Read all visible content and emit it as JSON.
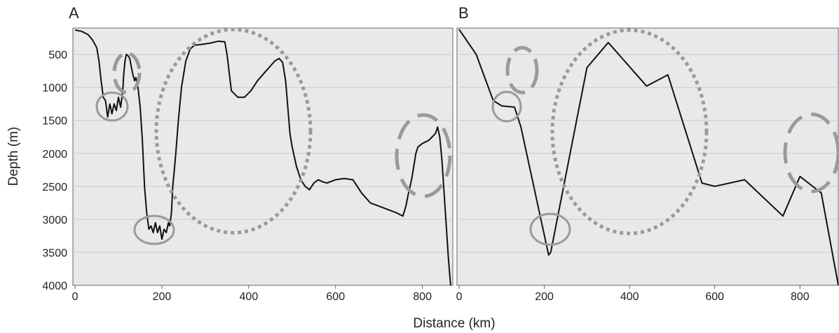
{
  "figure": {
    "ylabel": "Depth (m)",
    "xlabel": "Distance (km)"
  },
  "colors": {
    "plot_background": "#e8e9eb",
    "gridline": "#c9cbce",
    "line": "#111111",
    "annotation": "#9a9a9a",
    "axis": "#666666"
  },
  "chart_data": [
    {
      "type": "line",
      "panel_label": "A",
      "xlim": [
        -5,
        870
      ],
      "ylim": [
        4000,
        100
      ],
      "y_inverted": true,
      "grid": true,
      "xticks": [
        0,
        200,
        400,
        600,
        800
      ],
      "yticks": [
        500,
        1000,
        1500,
        2000,
        2500,
        3000,
        3500,
        4000
      ],
      "series": [
        {
          "x": [
            0,
            15,
            30,
            40,
            50,
            55,
            60,
            65,
            70,
            75,
            80,
            85,
            90,
            95,
            100,
            105,
            110,
            112,
            115,
            118,
            122,
            126,
            130,
            133,
            137,
            140,
            145,
            150,
            155,
            160,
            165,
            170,
            175,
            180,
            185,
            190,
            195,
            200,
            205,
            210,
            215,
            218,
            222,
            225,
            228,
            232,
            238,
            245,
            255,
            265,
            275,
            290,
            310,
            330,
            345,
            350,
            360,
            375,
            390,
            405,
            420,
            440,
            460,
            470,
            478,
            485,
            490,
            495,
            500,
            505,
            510,
            520,
            530,
            540,
            550,
            560,
            570,
            580,
            600,
            620,
            640,
            660,
            680,
            700,
            720,
            740,
            755,
            762,
            768,
            775,
            780,
            785,
            790,
            800,
            815,
            830,
            835,
            840,
            845,
            850,
            855,
            860,
            865
          ],
          "y": [
            130,
            150,
            200,
            280,
            400,
            600,
            900,
            1150,
            1200,
            1450,
            1250,
            1400,
            1250,
            1350,
            1150,
            1300,
            1050,
            800,
            600,
            500,
            520,
            560,
            700,
            800,
            900,
            850,
            1000,
            1300,
            1800,
            2500,
            2900,
            3150,
            3100,
            3200,
            3050,
            3200,
            3100,
            3300,
            3150,
            3200,
            3050,
            3100,
            2900,
            2500,
            2300,
            2000,
            1500,
            1000,
            600,
            420,
            360,
            350,
            330,
            300,
            310,
            500,
            1050,
            1150,
            1150,
            1050,
            900,
            750,
            600,
            560,
            620,
            900,
            1300,
            1700,
            1900,
            2050,
            2200,
            2400,
            2500,
            2550,
            2450,
            2400,
            2430,
            2450,
            2400,
            2380,
            2400,
            2600,
            2750,
            2800,
            2850,
            2900,
            2950,
            2800,
            2600,
            2400,
            2200,
            2000,
            1900,
            1850,
            1800,
            1700,
            1600,
            1750,
            2100,
            2600,
            3100,
            3600,
            4000
          ]
        }
      ]
    },
    {
      "type": "line",
      "panel_label": "B",
      "xlim": [
        -5,
        890
      ],
      "ylim": [
        4000,
        100
      ],
      "y_inverted": true,
      "grid": true,
      "xticks": [
        0,
        200,
        400,
        600,
        800
      ],
      "yticks": [
        500,
        1000,
        1500,
        2000,
        2500,
        3000,
        3500,
        4000
      ],
      "series": [
        {
          "x": [
            0,
            40,
            80,
            100,
            130,
            145,
            210,
            215,
            300,
            350,
            440,
            490,
            570,
            600,
            670,
            760,
            800,
            850,
            890
          ],
          "y": [
            120,
            500,
            1200,
            1280,
            1300,
            1600,
            3540,
            3500,
            700,
            320,
            980,
            810,
            2450,
            2500,
            2400,
            2950,
            2350,
            2600,
            4000
          ]
        }
      ]
    }
  ]
}
